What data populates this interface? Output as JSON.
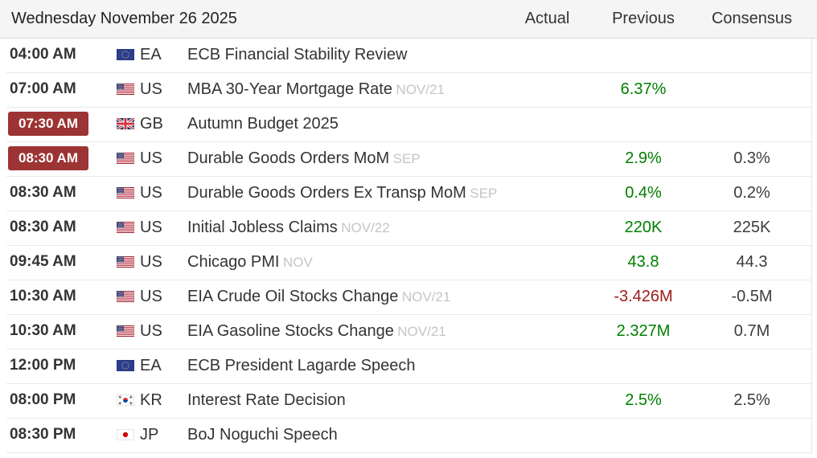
{
  "header": {
    "date_label": "Wednesday November 26 2025",
    "columns": [
      "Actual",
      "Previous",
      "Consensus"
    ]
  },
  "colors": {
    "positive": "#007f00",
    "negative": "#9e1a1a",
    "badge": "#9d3434"
  },
  "rows": [
    {
      "time": "04:00 AM",
      "highlighted": false,
      "flag": "eu",
      "country": "EA",
      "event": "ECB Financial Stability Review",
      "reference": "",
      "actual": "",
      "previous": "",
      "previous_color": "",
      "consensus": ""
    },
    {
      "time": "07:00 AM",
      "highlighted": false,
      "flag": "us",
      "country": "US",
      "event": "MBA 30-Year Mortgage Rate",
      "reference": "NOV/21",
      "actual": "",
      "previous": "6.37%",
      "previous_color": "positive",
      "consensus": ""
    },
    {
      "time": "07:30 AM",
      "highlighted": true,
      "flag": "gb",
      "country": "GB",
      "event": "Autumn Budget 2025",
      "reference": "",
      "actual": "",
      "previous": "",
      "previous_color": "",
      "consensus": ""
    },
    {
      "time": "08:30 AM",
      "highlighted": true,
      "flag": "us",
      "country": "US",
      "event": "Durable Goods Orders MoM",
      "reference": "SEP",
      "actual": "",
      "previous": "2.9%",
      "previous_color": "positive",
      "consensus": "0.3%"
    },
    {
      "time": "08:30 AM",
      "highlighted": false,
      "flag": "us",
      "country": "US",
      "event": "Durable Goods Orders Ex Transp MoM",
      "reference": "SEP",
      "actual": "",
      "previous": "0.4%",
      "previous_color": "positive",
      "consensus": "0.2%"
    },
    {
      "time": "08:30 AM",
      "highlighted": false,
      "flag": "us",
      "country": "US",
      "event": "Initial Jobless Claims",
      "reference": "NOV/22",
      "actual": "",
      "previous": "220K",
      "previous_color": "positive",
      "consensus": "225K"
    },
    {
      "time": "09:45 AM",
      "highlighted": false,
      "flag": "us",
      "country": "US",
      "event": "Chicago PMI",
      "reference": "NOV",
      "actual": "",
      "previous": "43.8",
      "previous_color": "positive",
      "consensus": "44.3"
    },
    {
      "time": "10:30 AM",
      "highlighted": false,
      "flag": "us",
      "country": "US",
      "event": "EIA Crude Oil Stocks Change",
      "reference": "NOV/21",
      "actual": "",
      "previous": "-3.426M",
      "previous_color": "negative",
      "consensus": "-0.5M"
    },
    {
      "time": "10:30 AM",
      "highlighted": false,
      "flag": "us",
      "country": "US",
      "event": "EIA Gasoline Stocks Change",
      "reference": "NOV/21",
      "actual": "",
      "previous": "2.327M",
      "previous_color": "positive",
      "consensus": "0.7M"
    },
    {
      "time": "12:00 PM",
      "highlighted": false,
      "flag": "eu",
      "country": "EA",
      "event": "ECB President Lagarde Speech",
      "reference": "",
      "actual": "",
      "previous": "",
      "previous_color": "",
      "consensus": ""
    },
    {
      "time": "08:00 PM",
      "highlighted": false,
      "flag": "kr",
      "country": "KR",
      "event": "Interest Rate Decision",
      "reference": "",
      "actual": "",
      "previous": "2.5%",
      "previous_color": "positive",
      "consensus": "2.5%"
    },
    {
      "time": "08:30 PM",
      "highlighted": false,
      "flag": "jp",
      "country": "JP",
      "event": "BoJ Noguchi Speech",
      "reference": "",
      "actual": "",
      "previous": "",
      "previous_color": "",
      "consensus": ""
    }
  ]
}
